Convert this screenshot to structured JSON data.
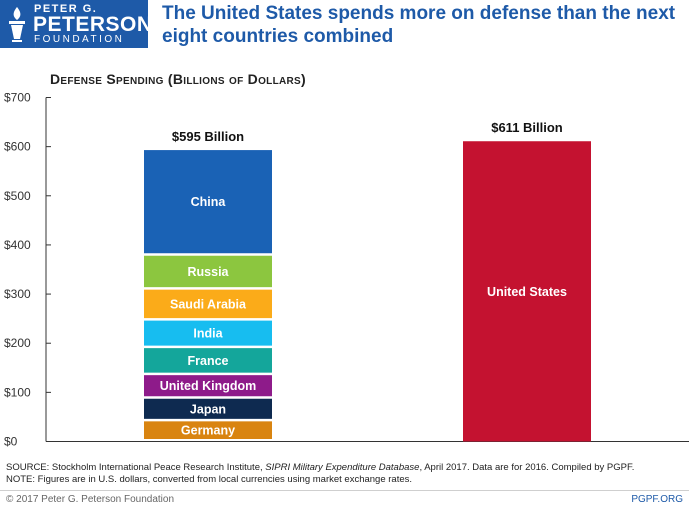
{
  "logo": {
    "line1": "PETER G.",
    "line2": "PETERSON",
    "line3": "FOUNDATION",
    "color": "#1e5aa8"
  },
  "headline": "The United States spends more on defense than the next eight countries combined",
  "chart_data": {
    "type": "bar",
    "title": "Defense Spending (Billions of Dollars)",
    "ylabel": "",
    "xlabel": "",
    "ylim": [
      0,
      700
    ],
    "yticks": [
      "$0",
      "$100",
      "$200",
      "$300",
      "$400",
      "$500",
      "$600",
      "$700"
    ],
    "grid": false,
    "legend": "none",
    "stacked_bar": {
      "total_label": "$595 Billion",
      "segments": [
        {
          "name": "Germany",
          "value": 41,
          "color": "#d98410"
        },
        {
          "name": "Japan",
          "value": 46,
          "color": "#0e2a50"
        },
        {
          "name": "United Kingdom",
          "value": 48,
          "color": "#8e1b8a"
        },
        {
          "name": "France",
          "value": 55,
          "color": "#14a69b"
        },
        {
          "name": "India",
          "value": 56,
          "color": "#17bdf0"
        },
        {
          "name": "Saudi Arabia",
          "value": 63,
          "color": "#fbab19"
        },
        {
          "name": "Russia",
          "value": 69,
          "color": "#8cc63f"
        },
        {
          "name": "China",
          "value": 215,
          "color": "#1a62b5"
        }
      ]
    },
    "single_bar": {
      "name": "United States",
      "value": 611,
      "total_label": "$611 Billion",
      "color": "#c41230"
    }
  },
  "source": {
    "line1_prefix": "SOURCE: Stockholm International Peace Research Institute,",
    "line1_italic": "SIPRI Military Expenditure Database",
    "line1_suffix": ", April 2017. Data are for 2016. Compiled by PGPF.",
    "line2": "NOTE: Figures are in U.S. dollars, converted from local currencies using market exchange rates."
  },
  "footer": {
    "copyright": "© 2017 Peter G. Peterson Foundation",
    "site": "PGPF.ORG"
  }
}
